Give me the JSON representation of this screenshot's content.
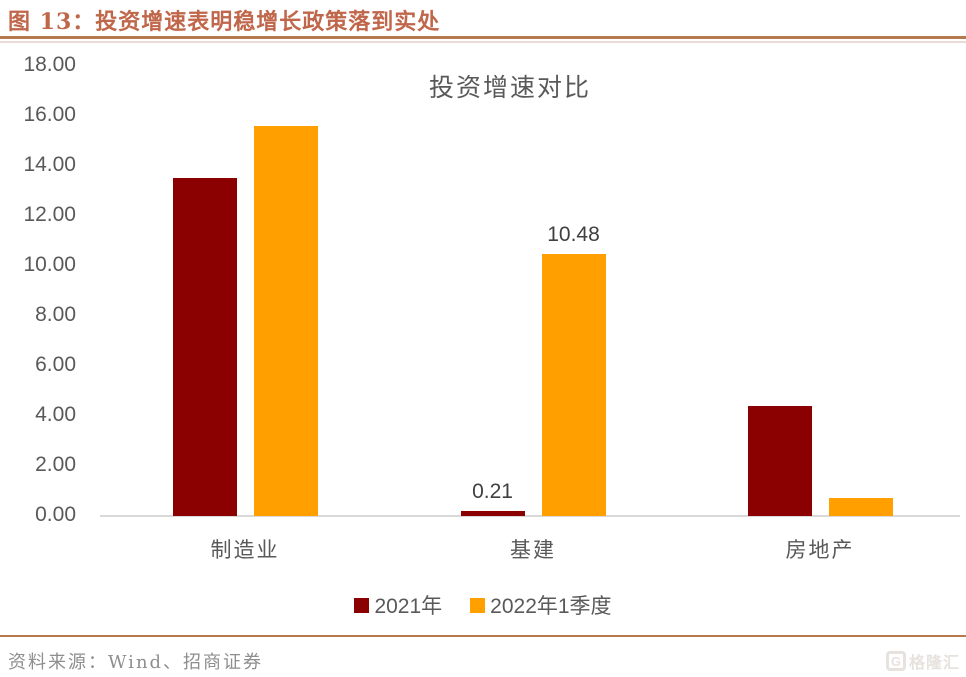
{
  "header": {
    "title": "图 13：投资增速表明稳增长政策落到实处"
  },
  "colors": {
    "title_text": "#C0664A",
    "header_rule": "#B5794E",
    "axis_text": "#595959",
    "baseline": "#D9D9D9",
    "data_label_text": "#404040",
    "series_2021": "#8B0000",
    "series_2022q1": "#FFA000"
  },
  "chart_data": {
    "type": "bar",
    "title": "投资增速对比",
    "categories": [
      "制造业",
      "基建",
      "房地产"
    ],
    "series": [
      {
        "name": "2021年",
        "color": "#8B0000",
        "values": [
          13.5,
          0.21,
          4.4
        ],
        "point_labels": [
          null,
          "0.21",
          null
        ]
      },
      {
        "name": "2022年1季度",
        "color": "#FFA000",
        "values": [
          15.6,
          10.48,
          0.7
        ],
        "point_labels": [
          null,
          "10.48",
          null
        ]
      }
    ],
    "ylim": [
      0,
      18
    ],
    "ytick_labels": [
      "18.00",
      "16.00",
      "14.00",
      "12.00",
      "10.00",
      "8.00",
      "6.00",
      "4.00",
      "2.00",
      "0.00"
    ],
    "xlabel": "",
    "ylabel": "",
    "grid": false,
    "legend_position": "bottom"
  },
  "footer": {
    "source": "资料来源：Wind、招商证券",
    "logo_letter": "G",
    "logo_text": "格隆汇"
  }
}
